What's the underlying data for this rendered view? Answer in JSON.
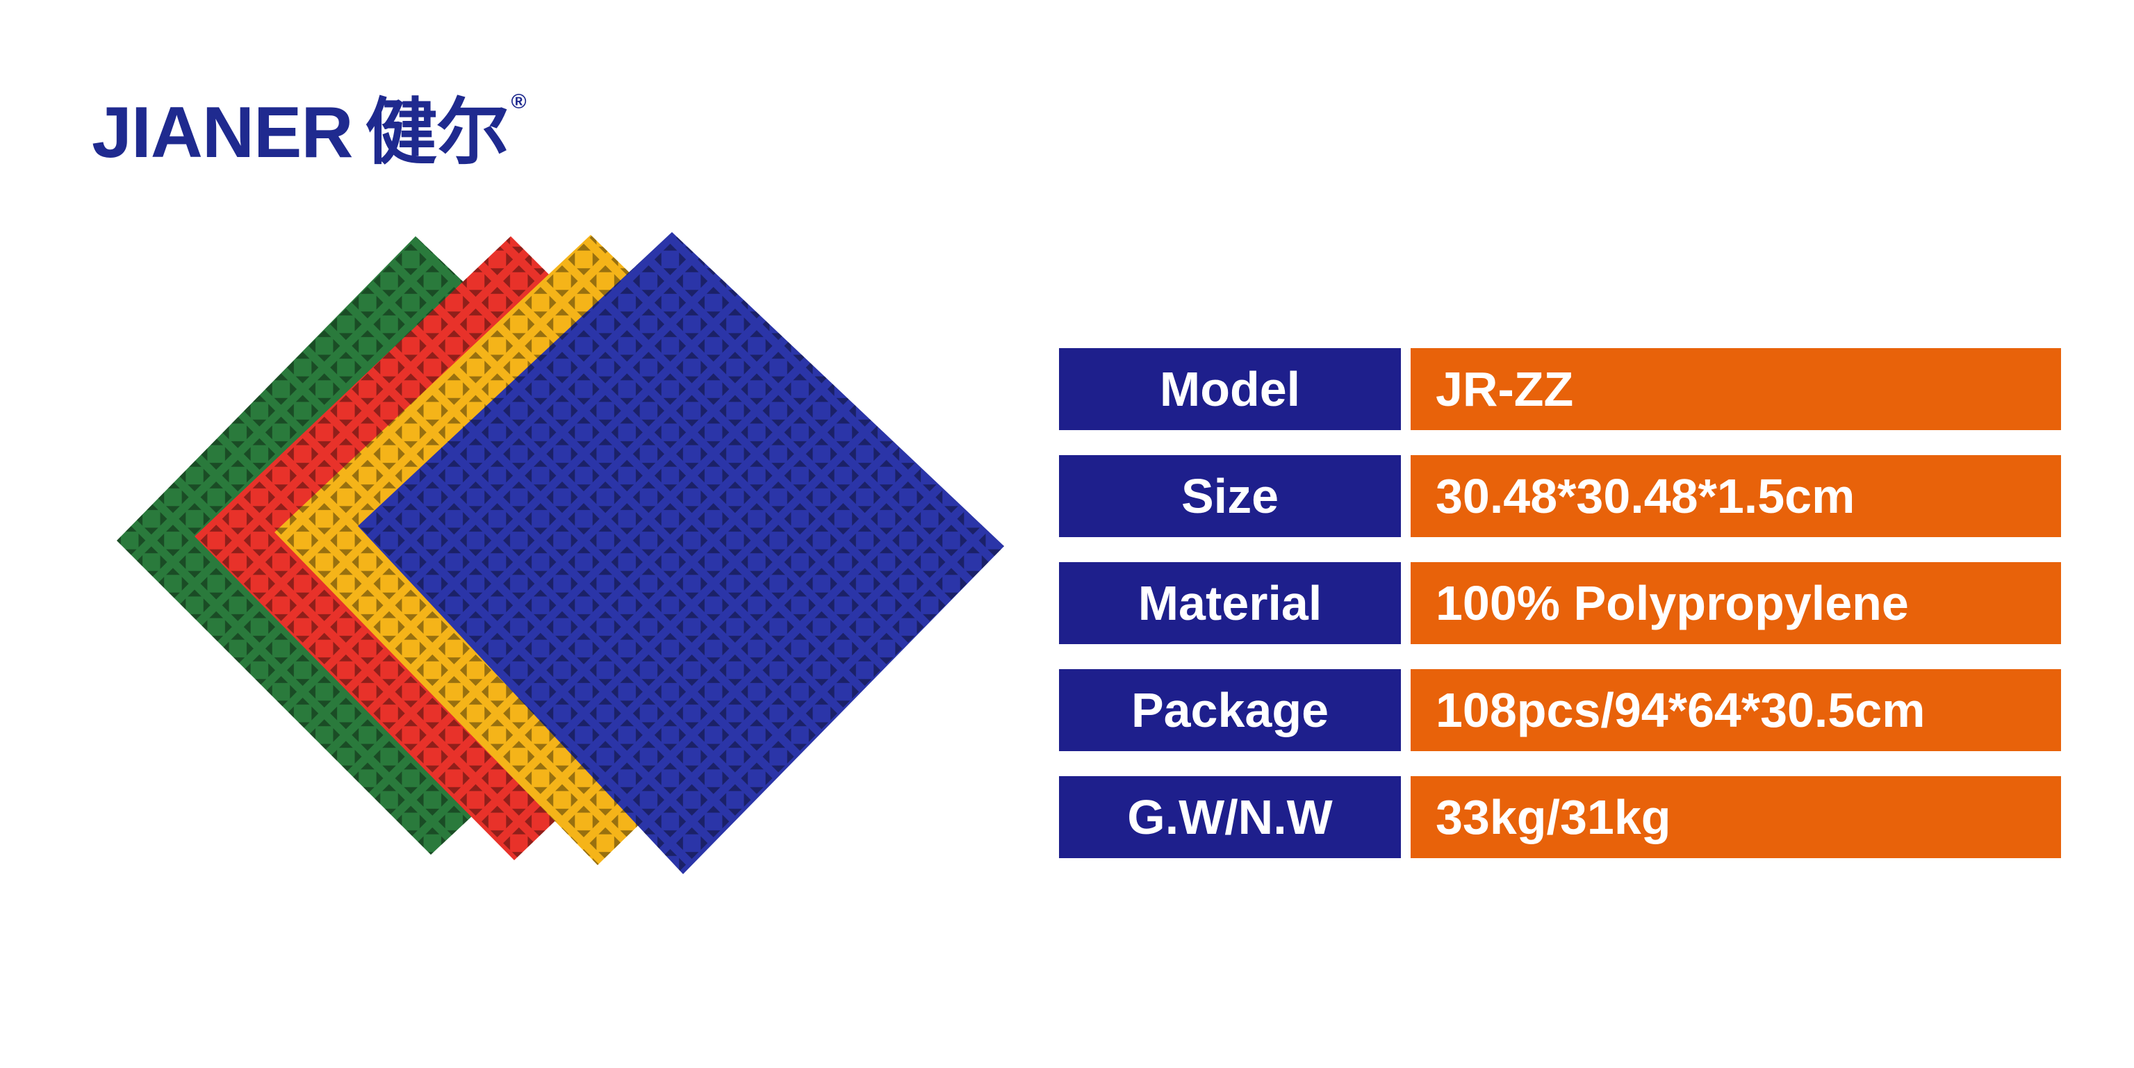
{
  "header": {
    "brand": "JIANER",
    "brand_cn": "健尔",
    "mark": "®"
  },
  "table": {
    "rows": [
      [
        "Model",
        "JR-ZZ"
      ],
      [
        "Size",
        "30.48*30.48*1.5cm"
      ],
      [
        "Material",
        "100% Polypropylene"
      ],
      [
        "Package",
        "108pcs/94*64*30.5cm"
      ],
      [
        "G.W/N.W",
        "33kg/31kg"
      ]
    ]
  }
}
